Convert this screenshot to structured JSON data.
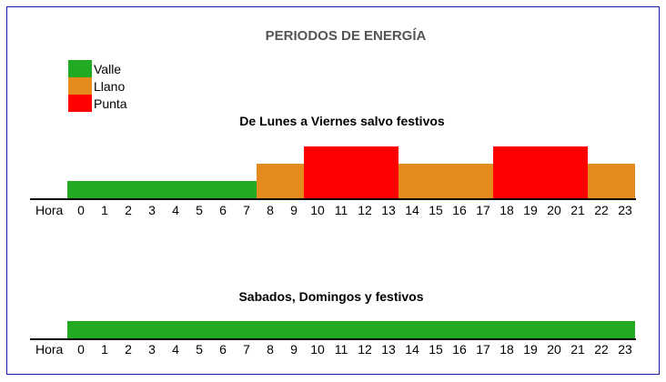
{
  "title": "PERIODOS DE ENERGÍA",
  "legend": [
    {
      "label": "Valle",
      "color": "#22aa22"
    },
    {
      "label": "Llano",
      "color": "#e38b1d"
    },
    {
      "label": "Punta",
      "color": "#ff0000"
    }
  ],
  "colors": {
    "valle": "#22aa22",
    "llano": "#e38b1d",
    "punta": "#ff0000",
    "border": "#1a1aa0",
    "title": "#555555"
  },
  "chart_data": [
    {
      "type": "bar",
      "title": "De Lunes a Viernes salvo festivos",
      "xlabel": "Hora",
      "ylabel": "",
      "categories": [
        "0",
        "1",
        "2",
        "3",
        "4",
        "5",
        "6",
        "7",
        "8",
        "9",
        "10",
        "11",
        "12",
        "13",
        "14",
        "15",
        "16",
        "17",
        "18",
        "19",
        "20",
        "21",
        "22",
        "23"
      ],
      "periods": [
        "Valle",
        "Valle",
        "Valle",
        "Valle",
        "Valle",
        "Valle",
        "Valle",
        "Valle",
        "Llano",
        "Llano",
        "Punta",
        "Punta",
        "Punta",
        "Punta",
        "Llano",
        "Llano",
        "Llano",
        "Llano",
        "Punta",
        "Punta",
        "Punta",
        "Punta",
        "Llano",
        "Llano"
      ],
      "levels": {
        "Valle": 1,
        "Llano": 2,
        "Punta": 3
      },
      "ylim": [
        0,
        3
      ],
      "grid": false,
      "legend_position": "top-left"
    },
    {
      "type": "bar",
      "title": "Sabados, Domingos y festivos",
      "xlabel": "Hora",
      "ylabel": "",
      "categories": [
        "0",
        "1",
        "2",
        "3",
        "4",
        "5",
        "6",
        "7",
        "8",
        "9",
        "10",
        "11",
        "12",
        "13",
        "14",
        "15",
        "16",
        "17",
        "18",
        "19",
        "20",
        "21",
        "22",
        "23"
      ],
      "periods": [
        "Valle",
        "Valle",
        "Valle",
        "Valle",
        "Valle",
        "Valle",
        "Valle",
        "Valle",
        "Valle",
        "Valle",
        "Valle",
        "Valle",
        "Valle",
        "Valle",
        "Valle",
        "Valle",
        "Valle",
        "Valle",
        "Valle",
        "Valle",
        "Valle",
        "Valle",
        "Valle",
        "Valle"
      ],
      "levels": {
        "Valle": 1,
        "Llano": 2,
        "Punta": 3
      },
      "ylim": [
        0,
        3
      ],
      "grid": false
    }
  ]
}
